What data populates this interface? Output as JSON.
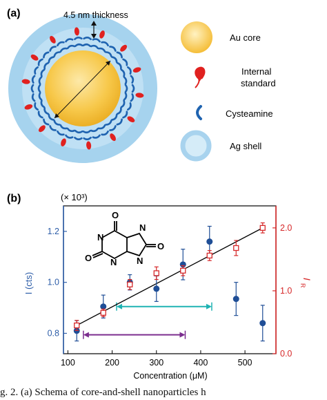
{
  "panel_a": {
    "label": "(a)",
    "thickness_label": "4.5 nm thickness",
    "legend": [
      {
        "label": "Au core",
        "icon": "au-core-circle-icon",
        "color": "#f6c445"
      },
      {
        "label": "Internal standard",
        "lines": [
          "Internal",
          "standard"
        ],
        "icon": "internal-standard-drop-icon",
        "color": "#e0211f"
      },
      {
        "label": "Cysteamine",
        "icon": "cysteamine-arc-icon",
        "color": "#1f63b0"
      },
      {
        "label": "Ag shell",
        "icon": "ag-shell-ring-icon",
        "color": "#a8d3ee"
      }
    ]
  },
  "panel_b": {
    "label": "(b)",
    "multiplier": "(× 10³)",
    "molecule_name": "",
    "molecule_atoms": [
      "O",
      "N",
      "O",
      "N",
      "N",
      "O",
      "N"
    ]
  },
  "caption_text": "g. 2. (a) Schema of core-and-shell nanoparticles h",
  "chart_data": {
    "type": "scatter",
    "x": [
      120,
      180,
      240,
      300,
      360,
      420,
      480,
      540
    ],
    "xlabel": "Concentration (μM)",
    "xlim": [
      90,
      570
    ],
    "xticks": [
      "100",
      "200",
      "300",
      "400",
      "500"
    ],
    "series": [
      {
        "name": "",
        "axis": "left",
        "color": "#1f4e96",
        "marker": "filled-circle",
        "values": [
          0.81,
          0.905,
          1.0,
          0.975,
          1.07,
          1.16,
          0.935,
          0.84
        ],
        "errors": [
          0.04,
          0.045,
          0.03,
          0.05,
          0.06,
          0.06,
          0.065,
          0.07
        ]
      },
      {
        "name": "",
        "axis": "right",
        "color": "#d62728",
        "marker": "open-square",
        "values": [
          0.45,
          0.65,
          1.1,
          1.28,
          1.32,
          1.56,
          1.68,
          2.0
        ],
        "errors": [
          0.08,
          0.06,
          0.08,
          0.1,
          0.08,
          0.08,
          0.12,
          0.08
        ]
      }
    ],
    "fit_line": {
      "color": "#000000",
      "x": [
        120,
        540
      ],
      "y_right": [
        0.45,
        2.0
      ]
    },
    "ranges": [
      {
        "color": "#1fb3b3",
        "x": [
          210,
          425
        ],
        "y_right": 0.75
      },
      {
        "color": "#7b2d8e",
        "x": [
          135,
          365
        ],
        "y_right": 0.3
      }
    ],
    "ylabel_left": "I (cts)",
    "ylim_left": [
      0.72,
      1.3
    ],
    "yticks_left": [
      "0.8",
      "1.0",
      "1.2"
    ],
    "ylabel_right": "I",
    "ylabel_right_sub": "R",
    "ylim_right": [
      0.0,
      2.35
    ],
    "yticks_right": [
      "0.0",
      "1.0",
      "2.0"
    ],
    "grid": false
  }
}
